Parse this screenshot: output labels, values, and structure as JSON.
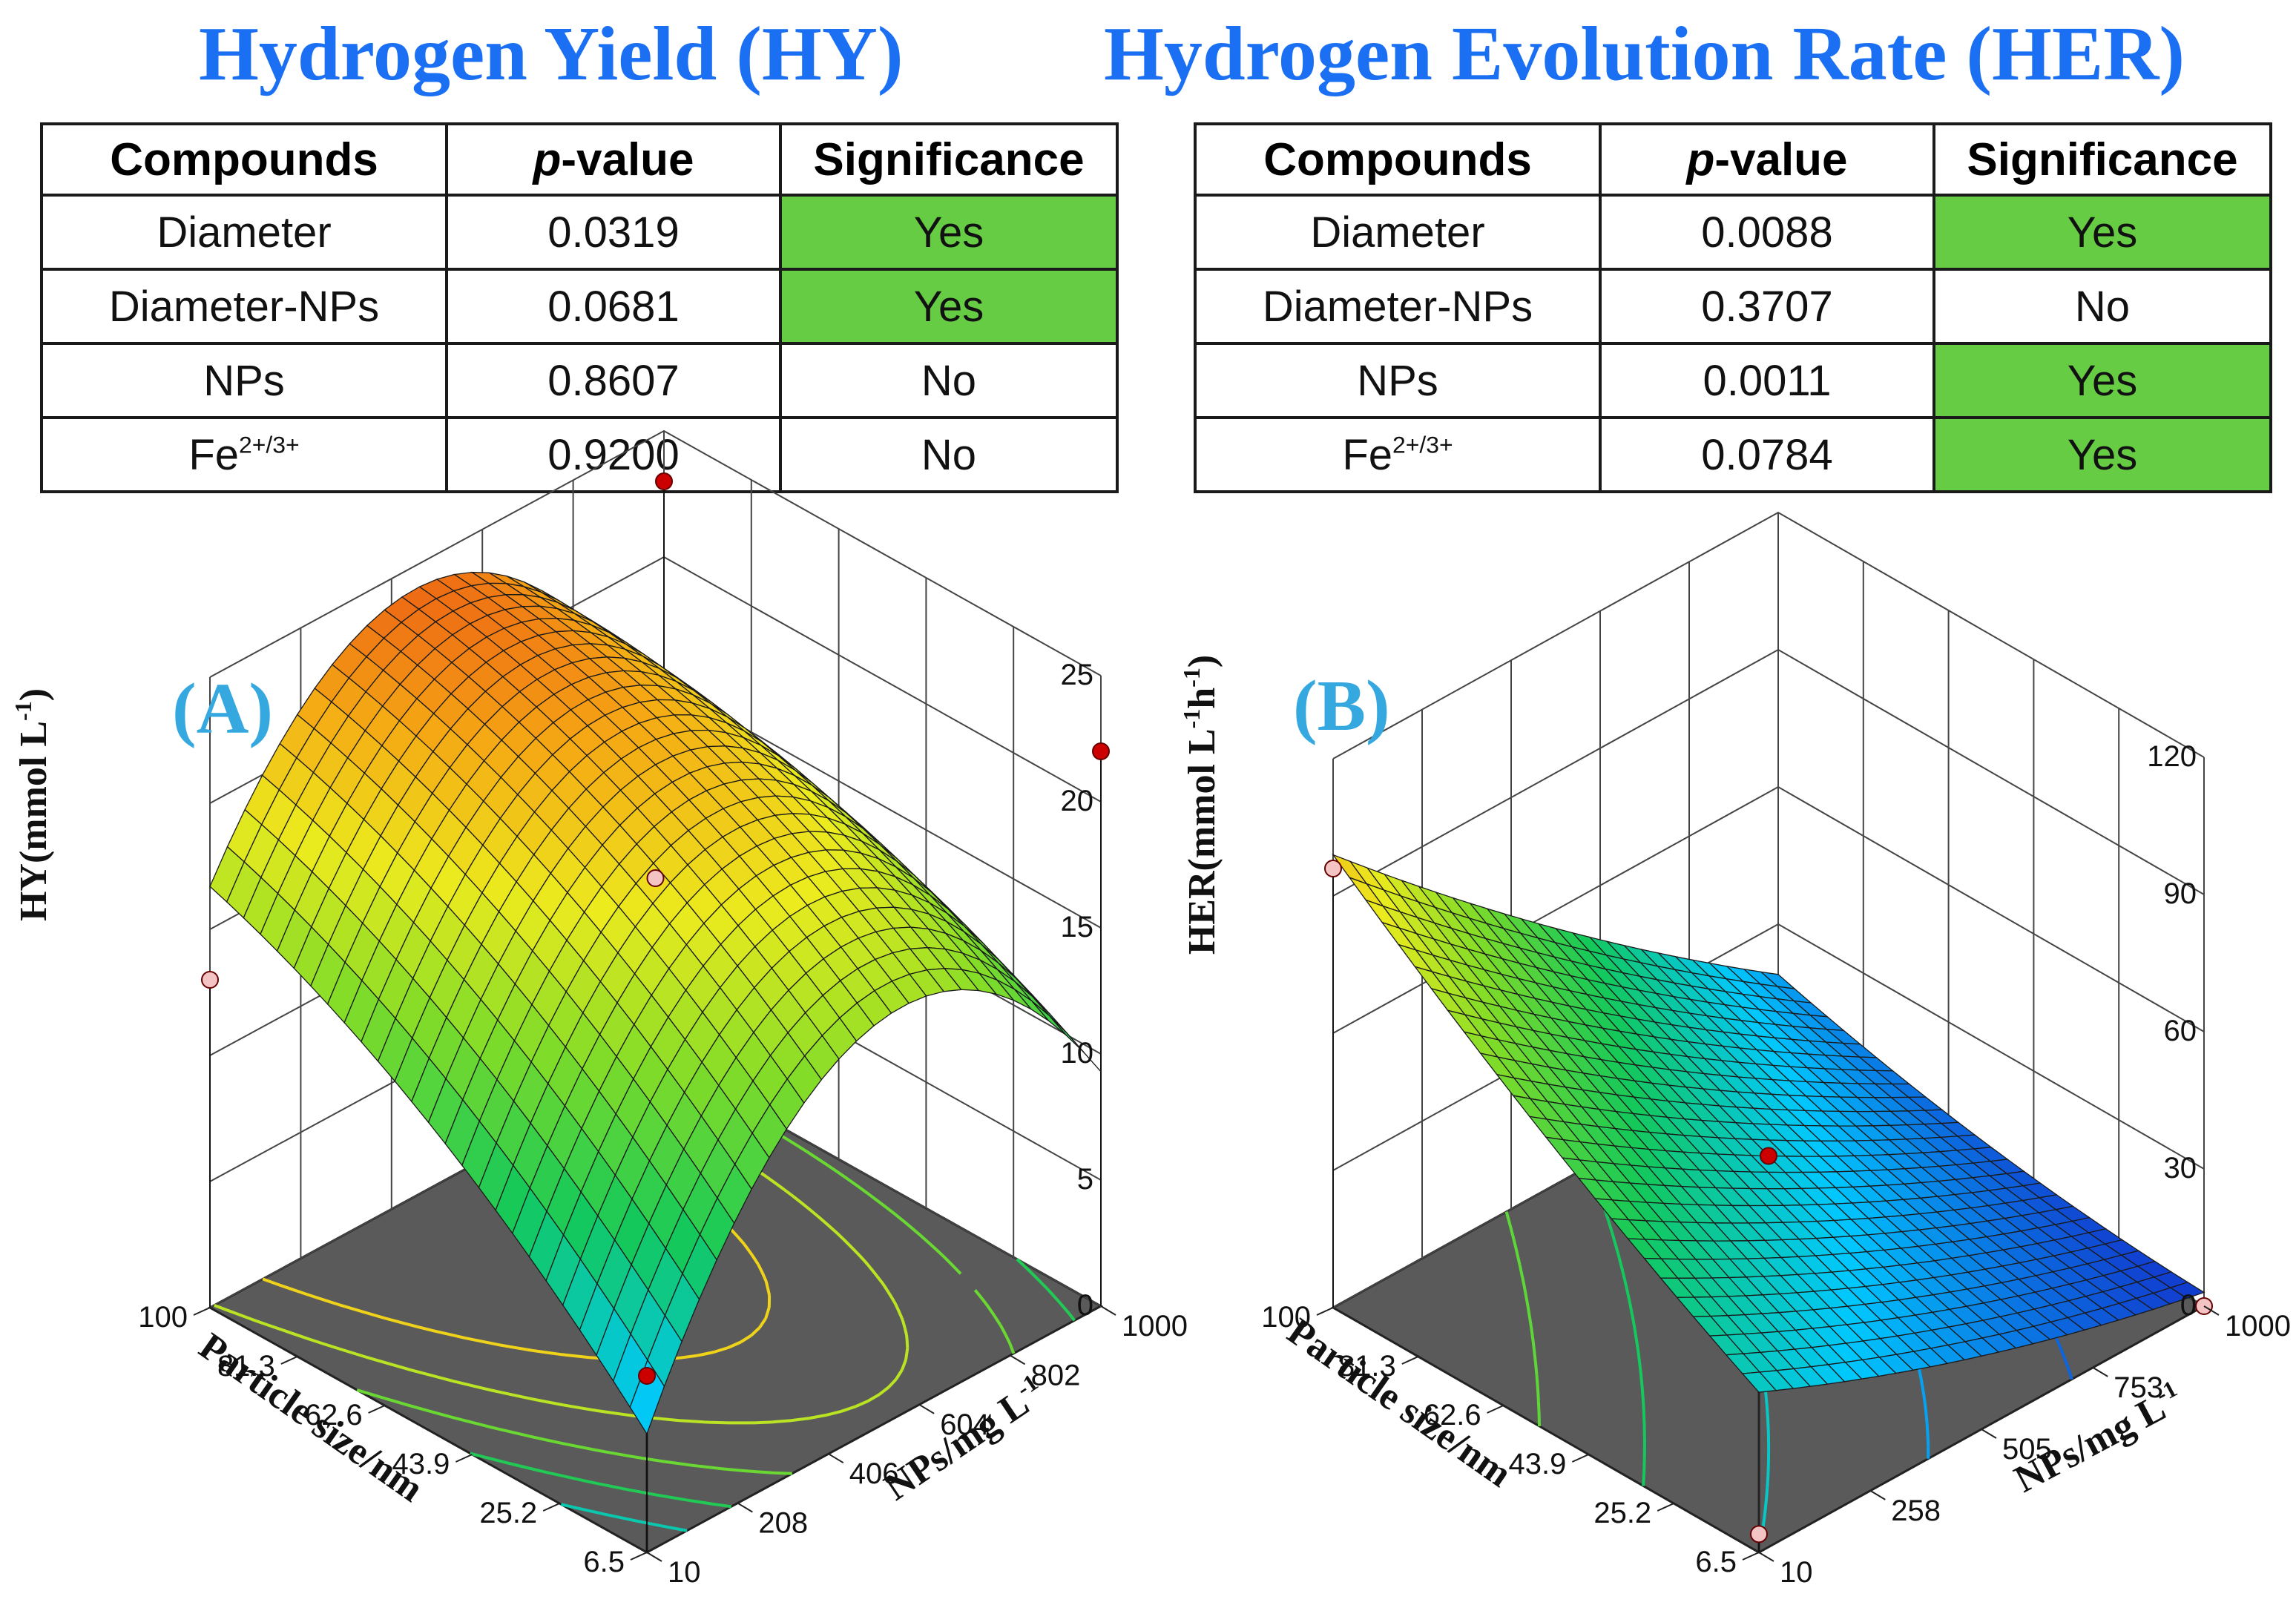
{
  "titles": {
    "hy": "Hydrogen Yield (HY)",
    "her": "Hydrogen Evolution Rate  (HER)"
  },
  "table_headers": {
    "compounds": "Compounds",
    "p_symbol": "p",
    "p_rest": "-value",
    "significance": "Significance"
  },
  "hy_table": {
    "rows": [
      {
        "compound": "Diameter",
        "p_value": "0.0319",
        "significance": "Yes"
      },
      {
        "compound": "Diameter-NPs",
        "p_value": "0.0681",
        "significance": "Yes"
      },
      {
        "compound": "NPs",
        "p_value": "0.8607",
        "significance": "No"
      },
      {
        "compound_base": "Fe",
        "compound_sup": "2+/3+",
        "p_value": "0.9200",
        "significance": "No"
      }
    ]
  },
  "her_table": {
    "rows": [
      {
        "compound": "Diameter",
        "p_value": "0.0088",
        "significance": "Yes"
      },
      {
        "compound": "Diameter-NPs",
        "p_value": "0.3707",
        "significance": "No"
      },
      {
        "compound": "NPs",
        "p_value": "0.0011",
        "significance": "Yes"
      },
      {
        "compound_base": "Fe",
        "compound_sup": "2+/3+",
        "p_value": "0.0784",
        "significance": "Yes"
      }
    ]
  },
  "colors": {
    "title": "#1b6ff2",
    "significant_cell": "#66cc44",
    "panel_letter": "#35a8e0",
    "floor": "#5a5a5a",
    "design_point": "#cc0000",
    "design_point_light": "#f4c4c4"
  },
  "chart_data": [
    {
      "type": "surface3d",
      "panel_label": "(A)",
      "z_label": "HY(mmol L",
      "z_label_sup": "-1",
      "z_label_close": ")",
      "x_label": "Particle size/nm",
      "y_label": "NPs/mg L",
      "y_label_sup": "-1",
      "z_ticks": [
        "0",
        "5",
        "10",
        "15",
        "20",
        "25"
      ],
      "z_range": [
        0,
        25
      ],
      "x_ticks": [
        "100",
        "81.3",
        "62.6",
        "43.9",
        "25.2",
        "6.5"
      ],
      "x_range": [
        6.5,
        100
      ],
      "y_ticks": [
        "10",
        "208",
        "406",
        "604",
        "802",
        "1000"
      ],
      "y_range": [
        10,
        1000
      ],
      "surface_model": {
        "intercept": 21.5,
        "nps": 0.3,
        "size": 4.0,
        "nps_sq": -9.0,
        "size_sq": -1.5,
        "interaction": -2.0
      },
      "contour_levels": [
        8,
        11,
        14,
        17,
        20
      ],
      "design_points": [
        {
          "size": 100,
          "nps": 10,
          "hy": 13.0
        },
        {
          "size": 100,
          "nps": 1000,
          "hy": 23.0
        },
        {
          "size": 6.5,
          "nps": 1000,
          "hy": 22.0
        },
        {
          "size": 53.25,
          "nps": 505,
          "hy": 17.0
        },
        {
          "size": 6.5,
          "nps": 10,
          "hy": 7.0
        }
      ]
    },
    {
      "type": "surface3d",
      "panel_label": "(B)",
      "z_label": "HER(mmol L",
      "z_label_sup": "-1",
      "z_label_mid": "h",
      "z_label_sup2": "-1",
      "z_label_close": ")",
      "x_label": "Particle size/nm",
      "y_label": "NPs/mg L",
      "y_label_sup": "-1",
      "z_ticks": [
        "0",
        "30",
        "60",
        "90",
        "120"
      ],
      "z_range": [
        0,
        120
      ],
      "x_ticks": [
        "100",
        "81.3",
        "62.6",
        "43.9",
        "25.2",
        "6.5"
      ],
      "x_range": [
        6.5,
        100
      ],
      "y_ticks": [
        "10",
        "258",
        "505",
        "753",
        "1000"
      ],
      "y_range": [
        10,
        1000
      ],
      "surface_model": {
        "intercept": 33,
        "nps": -28,
        "size": 20,
        "nps_sq": 3,
        "size_sq": 3,
        "interaction": -12
      },
      "contour_levels": [
        10,
        20,
        35,
        50,
        65
      ],
      "design_points": [
        {
          "size": 100,
          "nps": 10,
          "her": 96
        },
        {
          "size": 53.25,
          "nps": 505,
          "her": 33
        },
        {
          "size": 6.5,
          "nps": 10,
          "her": 4
        },
        {
          "size": 6.5,
          "nps": 1000,
          "her": 0
        }
      ]
    }
  ]
}
